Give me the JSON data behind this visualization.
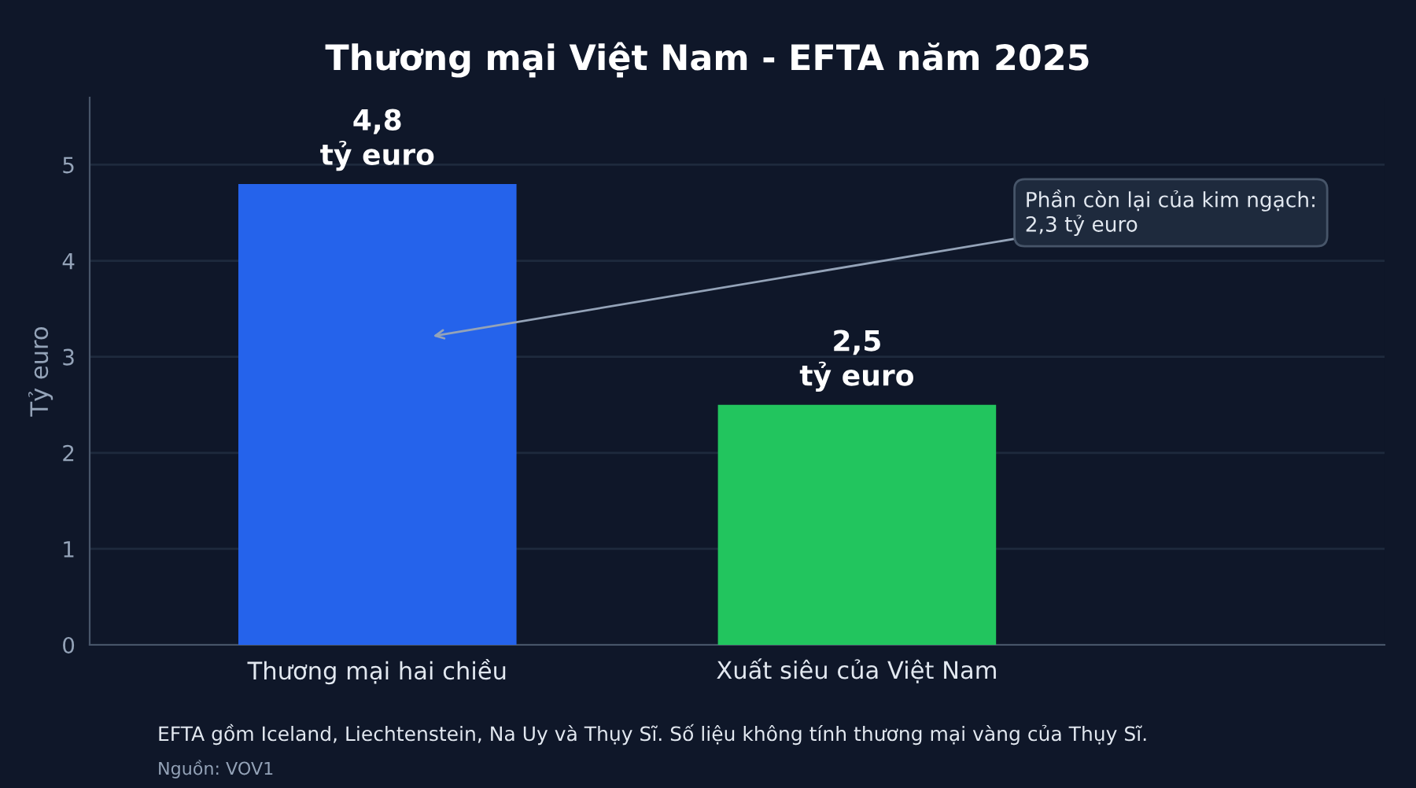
{
  "chart_data": {
    "type": "bar",
    "title": "Thương mại Việt Nam - EFTA năm 2025",
    "ylabel": "Tỷ euro",
    "categories": [
      "Thương mại hai chiều",
      "Xuất siêu của Việt Nam"
    ],
    "values": [
      4.8,
      2.5
    ],
    "colors": [
      "#2563eb",
      "#22c55e"
    ],
    "value_labels": [
      "4,8\ntỷ euro",
      "2,5\ntỷ euro"
    ],
    "ylim": [
      0,
      5.7
    ],
    "yticks": [
      0,
      1,
      2,
      3,
      4,
      5
    ],
    "grid": "y",
    "annotations": [
      "Phần còn lại của kim ngạch:\n2,3 tỷ euro",
      "EFTA gồm Iceland, Liechtenstein, Na Uy và Thụy Sĩ. Số liệu không tính thương mại vàng của Thụy Sĩ.",
      "Nguồn: VOV1"
    ]
  }
}
